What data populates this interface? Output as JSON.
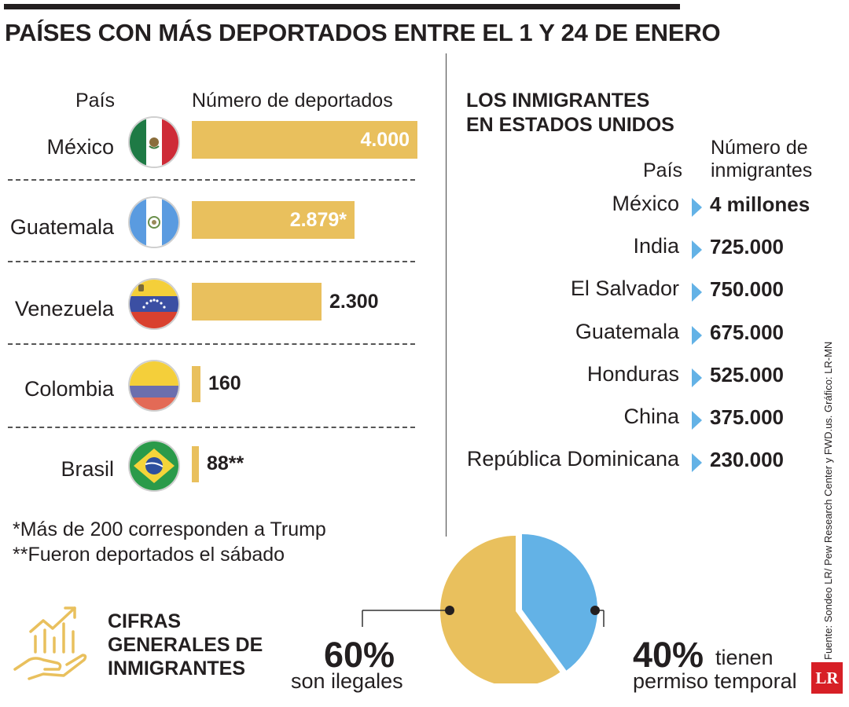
{
  "title": "PAÍSES CON MÁS DEPORTADOS  ENTRE EL 1 Y 24 DE ENERO",
  "colors": {
    "bar": "#e9c05d",
    "pie_illegal": "#e9c05d",
    "pie_temporary": "#63b2e6",
    "arrow": "#63b2e6",
    "logo": "#d71f26"
  },
  "deported": {
    "country_header": "País",
    "value_header": "Número de deportados",
    "max_value": 4000
  },
  "chart_data": [
    {
      "type": "bar",
      "title": "PAÍSES CON MÁS DEPORTADOS  ENTRE EL 1 Y 24 DE ENERO",
      "xlabel": "País",
      "ylabel": "Número de deportados",
      "categories": [
        "México",
        "Guatemala",
        "Venezuela",
        "Colombia",
        "Brasil"
      ],
      "values": [
        4000,
        2879,
        2300,
        160,
        88
      ],
      "labels": [
        "4.000",
        "2.879*",
        "2.300",
        "160",
        "88**"
      ],
      "flags": [
        "mexico-flag",
        "guatemala-flag",
        "venezuela-flag",
        "colombia-flag",
        "brazil-flag"
      ]
    },
    {
      "type": "pie",
      "title": "CIFRAS GENERALES DE INMIGRANTES",
      "categories": [
        "son ilegales",
        "tienen permiso temporal"
      ],
      "values": [
        60,
        40
      ],
      "labels": [
        "60%",
        "40%"
      ]
    }
  ],
  "footnotes": [
    "*Más de 200 corresponden a Trump",
    "**Fueron deportados el sábado"
  ],
  "immigrants": {
    "title_line1": "LOS INMIGRANTES",
    "title_line2": "EN ESTADOS UNIDOS",
    "value_header_line1": "Número de",
    "value_header_line2": "inmigrantes",
    "country_header": "País",
    "rows": [
      {
        "country": "México",
        "value": "4 millones"
      },
      {
        "country": "India",
        "value": "725.000"
      },
      {
        "country": "El Salvador",
        "value": "750.000"
      },
      {
        "country": "Guatemala",
        "value": "675.000"
      },
      {
        "country": "Honduras",
        "value": "525.000"
      },
      {
        "country": "China",
        "value": "375.000"
      },
      {
        "country": "República Dominicana",
        "value": "230.000"
      }
    ]
  },
  "cifras": {
    "title_line1": "CIFRAS",
    "title_line2": "GENERALES DE",
    "title_line3": "INMIGRANTES",
    "icon": "growth-hand-icon"
  },
  "pie_text": {
    "left_pct": "60%",
    "left_text": "son ilegales",
    "right_pct": "40%",
    "right_text_1": "tienen",
    "right_text_2": "permiso temporal"
  },
  "source": "Fuente: Sondeo LR/ Pew Research Center y FWD.us. Gráfico: LR-MN",
  "logo": "LR"
}
